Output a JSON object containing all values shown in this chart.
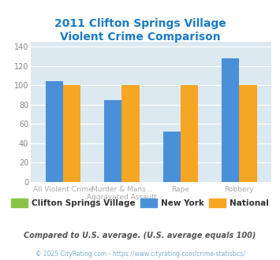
{
  "title": "2011 Clifton Springs Village\nViolent Crime Comparison",
  "title_color": "#1a7cc7",
  "categories": [
    "All Violent Crime",
    "Murder & Mans...\nAggravated Assault",
    "Rape",
    "Robbery"
  ],
  "x_labels_top": [
    "",
    "Murder & Mans...",
    "",
    ""
  ],
  "x_labels_bot": [
    "All Violent Crime",
    "Aggravated Assault",
    "Rape",
    "Robbery"
  ],
  "newyork_values": [
    104,
    85,
    52,
    128
  ],
  "national_values": [
    100,
    100,
    100,
    100
  ],
  "clifton_color": "#8bc34a",
  "newyork_color": "#4a90d9",
  "national_color": "#f5a623",
  "ylim": [
    0,
    145
  ],
  "yticks": [
    0,
    20,
    40,
    60,
    80,
    100,
    120,
    140
  ],
  "plot_bg_color": "#dce9f0",
  "legend_labels": [
    "Clifton Springs Village",
    "New York",
    "National"
  ],
  "footnote": "Compared to U.S. average. (U.S. average equals 100)",
  "copyright": "© 2025 CityRating.com - https://www.cityrating.com/crime-statistics/",
  "bar_width": 0.3
}
